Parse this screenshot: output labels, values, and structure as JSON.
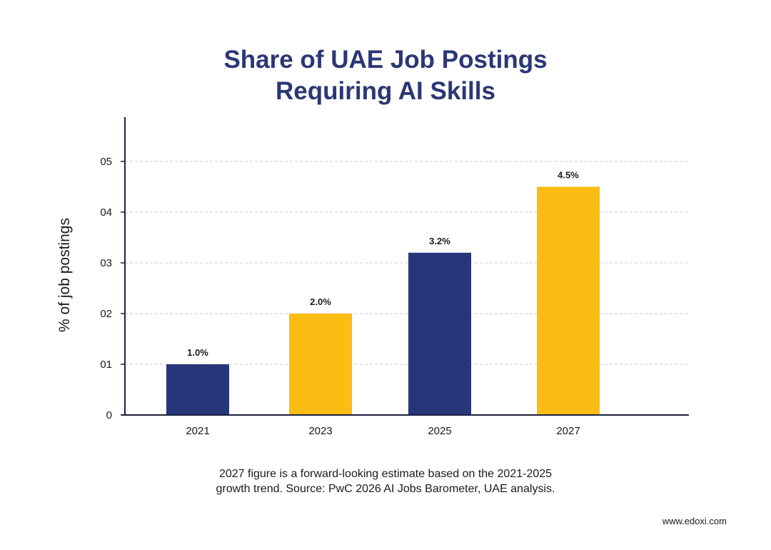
{
  "chart_data": {
    "type": "bar",
    "title_lines": [
      "Share of UAE Job Postings",
      "Requiring AI Skills"
    ],
    "ylabel": "% of job postings",
    "xlabel": "",
    "categories": [
      "2021",
      "2023",
      "2025",
      "2027"
    ],
    "values": [
      1.0,
      2.0,
      3.2,
      4.5
    ],
    "value_labels": [
      "1.0%",
      "2.0%",
      "3.2%",
      "4.5%"
    ],
    "bar_colors": [
      "#27367a",
      "#fbbd14",
      "#27367a",
      "#fbbd14"
    ],
    "yticks": [
      0,
      1,
      2,
      3,
      4,
      5
    ],
    "ytick_labels": [
      "0",
      "01",
      "02",
      "03",
      "04",
      "05"
    ],
    "ylim": [
      0,
      5
    ],
    "grid": "horizontal dashed"
  },
  "caption_lines": [
    "2027 figure is a forward-looking estimate based on the 2021-2025",
    "growth trend. Source: PwC 2026 AI Jobs Barometer, UAE analysis."
  ],
  "footer": "www.edoxi.com",
  "colors": {
    "title": "#2b3775",
    "axis": "#1c2240",
    "grid": "#c8c8c8"
  }
}
